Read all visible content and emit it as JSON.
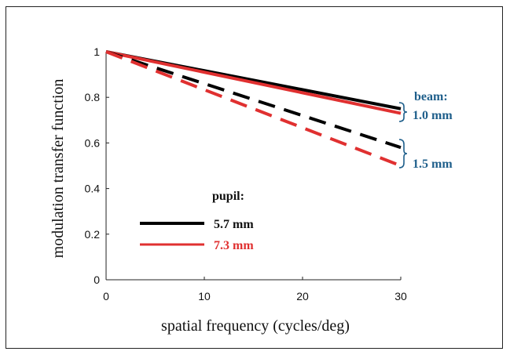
{
  "chart_data": {
    "type": "line",
    "title": "",
    "xlabel": "spatial frequency (cycles/deg)",
    "ylabel": "modulation transfer function",
    "xlim": [
      0,
      30
    ],
    "ylim": [
      0,
      1
    ],
    "x_ticks": [
      "0",
      "10",
      "20",
      "30"
    ],
    "y_ticks": [
      "0",
      "0.2",
      "0.4",
      "0.6",
      "0.8",
      "1"
    ],
    "grid": false,
    "legend": {
      "title": "pupil:",
      "placement": "lower-left",
      "entries": [
        {
          "label": "5.7 mm",
          "color": "#000000"
        },
        {
          "label": "7.3 mm",
          "color": "#e03030"
        }
      ]
    },
    "series": [
      {
        "pupil": "5.7 mm",
        "beam": "1.0 mm",
        "color": "#000000",
        "dash": "solid",
        "x": [
          0,
          30
        ],
        "y": [
          1.0,
          0.75
        ]
      },
      {
        "pupil": "7.3 mm",
        "beam": "1.0 mm",
        "color": "#e03030",
        "dash": "solid",
        "x": [
          0,
          30
        ],
        "y": [
          1.0,
          0.73
        ]
      },
      {
        "pupil": "5.7 mm",
        "beam": "1.5 mm",
        "color": "#000000",
        "dash": "dashed",
        "x": [
          0,
          30
        ],
        "y": [
          1.0,
          0.58
        ]
      },
      {
        "pupil": "7.3 mm",
        "beam": "1.5 mm",
        "color": "#e03030",
        "dash": "dashed",
        "x": [
          0,
          30
        ],
        "y": [
          1.0,
          0.5
        ]
      }
    ],
    "annotations": {
      "beam_title": "beam:",
      "beam_small": "1.0 mm",
      "beam_large": "1.5 mm"
    }
  }
}
